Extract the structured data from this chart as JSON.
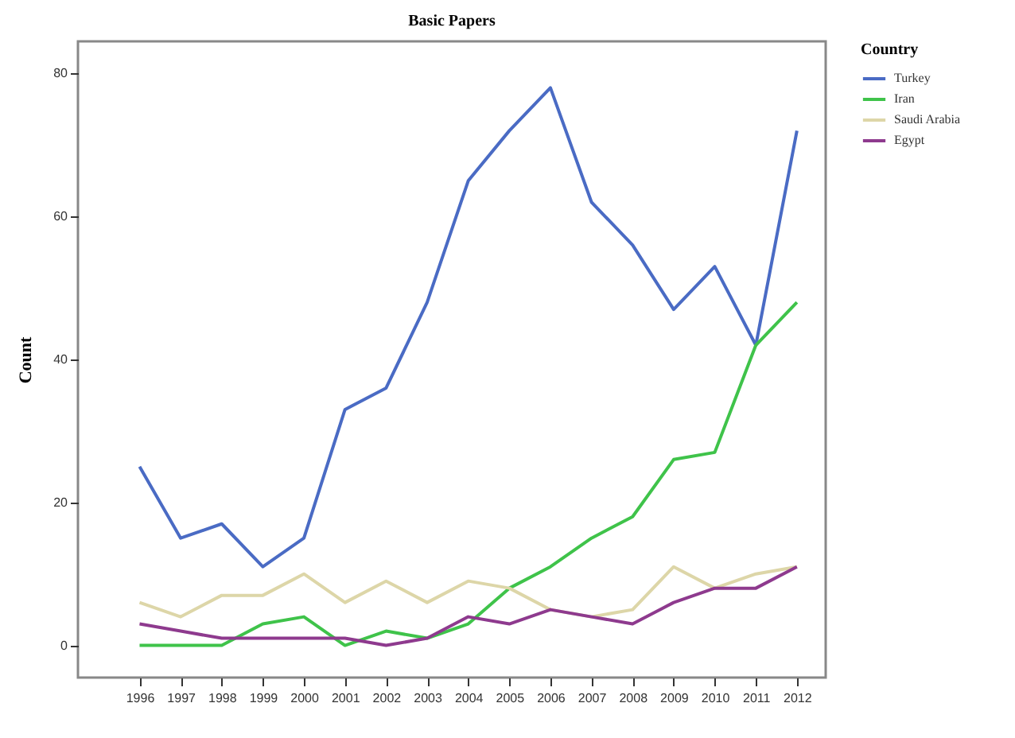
{
  "chart_data": {
    "type": "line",
    "title": "Basic Papers",
    "ylabel": "Count",
    "legend_title": "Country",
    "legend": "top right",
    "grid": false,
    "marker": "none",
    "line_style": "solid",
    "categories": [
      "1996",
      "1997",
      "1998",
      "1999",
      "2000",
      "2001",
      "2002",
      "2003",
      "2004",
      "2005",
      "2006",
      "2007",
      "2008",
      "2009",
      "2010",
      "2011",
      "2012"
    ],
    "ylim": [
      -4.5,
      84.5
    ],
    "yticks": [
      0,
      20,
      40,
      60,
      80
    ],
    "series": [
      {
        "name": "Turkey",
        "color": "#4a6bc4",
        "values": [
          25,
          15,
          17,
          11,
          15,
          33,
          36,
          48,
          65,
          72,
          78,
          62,
          56,
          47,
          53,
          42,
          72
        ]
      },
      {
        "name": "Iran",
        "color": "#3fc34a",
        "values": [
          0,
          0,
          0,
          3,
          4,
          0,
          2,
          1,
          3,
          8,
          11,
          15,
          18,
          26,
          27,
          42,
          48
        ]
      },
      {
        "name": "Saudi Arabia",
        "color": "#ddd6a8",
        "values": [
          6,
          4,
          7,
          7,
          10,
          6,
          9,
          6,
          9,
          8,
          5,
          4,
          5,
          11,
          8,
          10,
          11
        ]
      },
      {
        "name": "Egypt",
        "color": "#8e3a8e",
        "values": [
          3,
          2,
          1,
          1,
          1,
          1,
          0,
          1,
          4,
          3,
          5,
          4,
          3,
          6,
          8,
          8,
          11
        ]
      }
    ]
  }
}
